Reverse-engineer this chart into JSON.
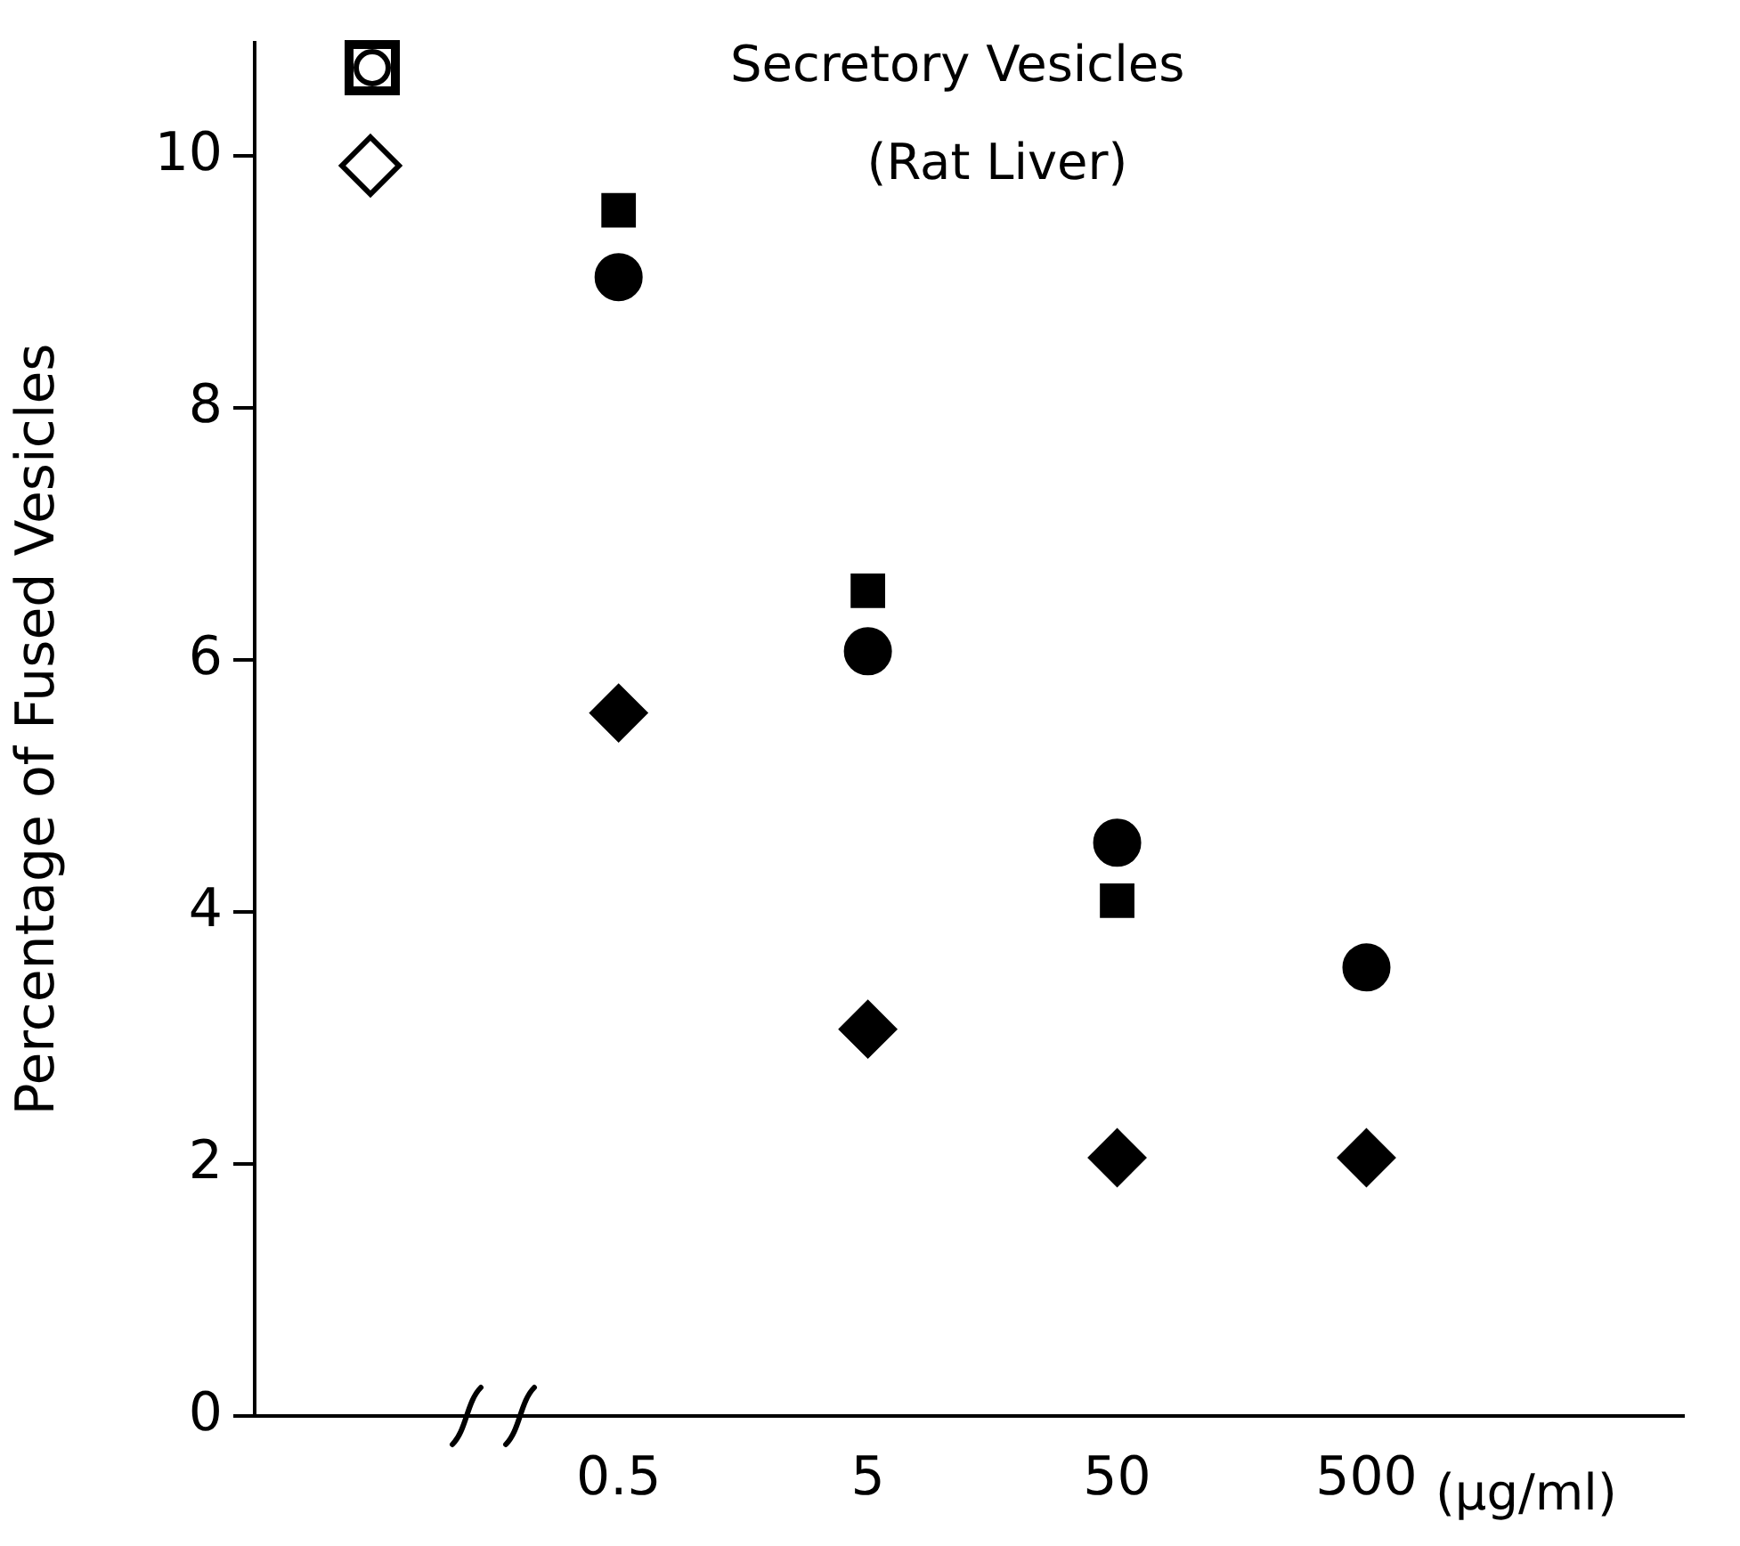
{
  "chart_data": {
    "type": "scatter",
    "title": "Secretory Vesicles",
    "subtitle": "(Rat Liver)",
    "xlabel": "(µg/ml)",
    "ylabel": "Percentage of Fused Vesicles",
    "categories": [
      "0.5",
      "5",
      "50",
      "500"
    ],
    "series": [
      {
        "color": "#000000",
        "marker": "square",
        "values": [
          9.57,
          6.55,
          4.09,
          null
        ]
      },
      {
        "color": "#000000",
        "marker": "circle",
        "values": [
          9.04,
          6.07,
          4.55,
          3.56
        ]
      },
      {
        "color": "#000000",
        "marker": "diamond",
        "values": [
          5.58,
          3.07,
          2.05,
          2.05
        ]
      }
    ],
    "ylim": [
      0,
      10.9
    ],
    "yticks": [
      0,
      2,
      4,
      6,
      8,
      10
    ],
    "grid": false
  }
}
